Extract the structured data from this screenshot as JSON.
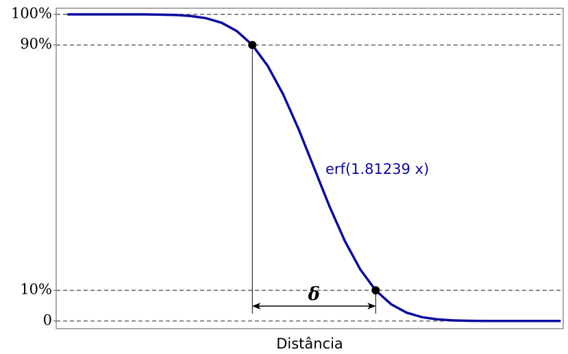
{
  "chart_data": {
    "type": "line",
    "x_label": "Distância",
    "annotation": "erf(1.81239 x)",
    "delta_label": "δ",
    "color": "#0a0aa0",
    "x": [
      -2,
      -1.875,
      -1.75,
      -1.625,
      -1.5,
      -1.375,
      -1.25,
      -1.125,
      -1,
      -0.875,
      -0.75,
      -0.625,
      -0.5,
      -0.375,
      -0.25,
      -0.125,
      0,
      0.125,
      0.25,
      0.375,
      0.5,
      0.625,
      0.75,
      0.875,
      1,
      1.125,
      1.25,
      1.375,
      1.5,
      1.625,
      1.75,
      1.875,
      2
    ],
    "values": [
      100,
      100,
      100,
      100,
      99.99,
      99.98,
      99.92,
      99.79,
      99.46,
      98.75,
      97.27,
      94.54,
      90,
      83.18,
      73.92,
      62.57,
      50,
      37.43,
      26.08,
      16.82,
      10,
      5.46,
      2.73,
      1.25,
      0.54,
      0.21,
      0.08,
      0.02,
      0.01,
      0,
      0,
      0,
      0
    ],
    "markers": {
      "x": [
        -0.5,
        0.5
      ],
      "values": [
        90,
        10
      ]
    },
    "xlim": [
      -2.09,
      2.02
    ],
    "ylim": [
      -2.5,
      102
    ],
    "yticks": [
      0,
      {
        "value": 10,
        "label": "10%"
      },
      {
        "value": 90,
        "label": "90%"
      },
      {
        "value": 100,
        "label": "100%"
      }
    ],
    "grid": true
  }
}
